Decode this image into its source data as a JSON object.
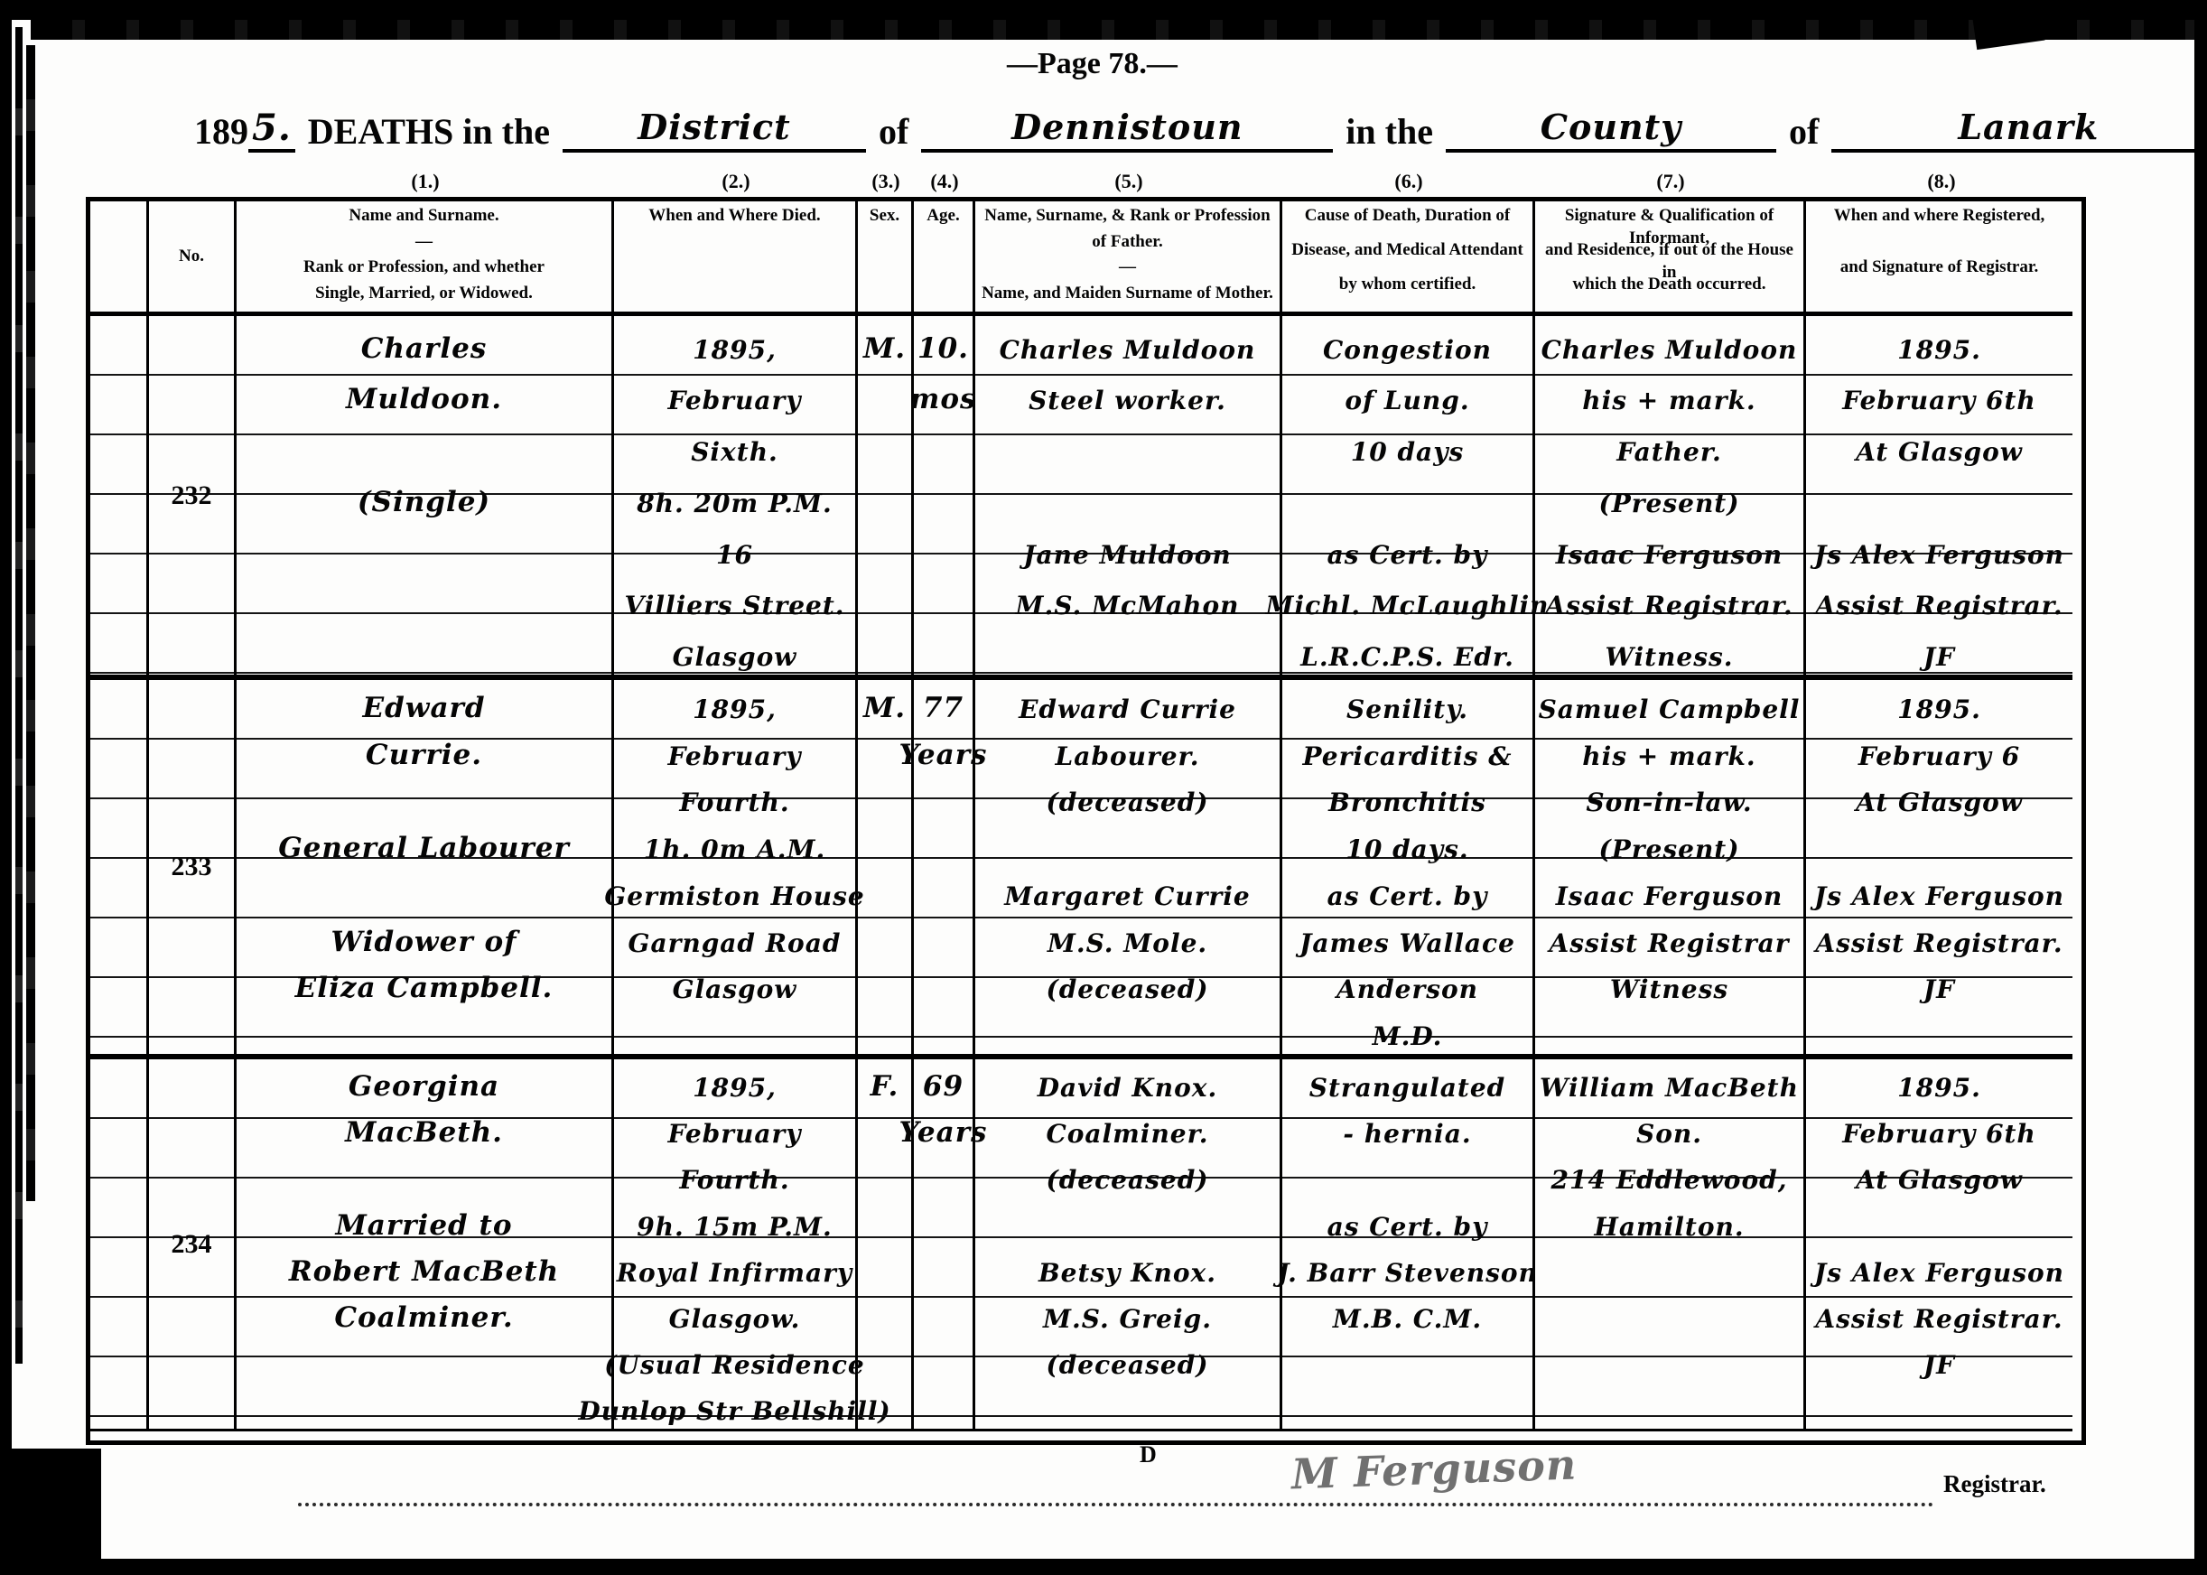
{
  "page_label": "—Page 78.—",
  "title": {
    "year_printed": "189",
    "year_hand": "5.",
    "deaths_in_the": "DEATHS in the",
    "of1": "of",
    "in_the": "in the",
    "of2": "of",
    "district_hand": "District",
    "district_name_hand": "Dennistoun",
    "county_word_hand": "County",
    "county_name_hand": "Lanark"
  },
  "colnums": [
    "(1.)",
    "(2.)",
    "(3.)",
    "(4.)",
    "(5.)",
    "(6.)",
    "(7.)",
    "(8.)"
  ],
  "header": {
    "no": "No.",
    "name": [
      "Name and Surname.",
      "—",
      "Rank or Profession, and whether",
      "Single, Married, or Widowed."
    ],
    "died": [
      "When and Where Died."
    ],
    "sex": [
      "Sex."
    ],
    "age": [
      "Age."
    ],
    "father": [
      "Name, Surname, & Rank or Profession",
      "of Father.",
      "—",
      "Name, and Maiden Surname of Mother."
    ],
    "cause": [
      "Cause of Death, Duration of",
      "Disease, and Medical Attendant",
      "by whom certified."
    ],
    "informant": [
      "Signature & Qualification of Informant,",
      "and Residence, if out of the House in",
      "which the Death occurred."
    ],
    "registered": [
      "When and where Registered,",
      "and Signature of Registrar."
    ]
  },
  "entries": [
    {
      "no": "232",
      "name": [
        "Charles",
        "Muldoon.",
        "",
        "(Single)",
        "",
        "",
        ""
      ],
      "died": [
        "1895,",
        "February",
        "Sixth.",
        "8h. 20m P.M.",
        "16",
        "Villiers Street.",
        "Glasgow"
      ],
      "sex": [
        "M.",
        "",
        "",
        "",
        "",
        "",
        ""
      ],
      "age": [
        "10.",
        "mos",
        "",
        "",
        "",
        "",
        ""
      ],
      "father": [
        "Charles Muldoon",
        "Steel worker.",
        "",
        "",
        "Jane Muldoon",
        "M.S. McMahon",
        ""
      ],
      "cause": [
        "Congestion",
        "of Lung.",
        "10 days",
        "",
        "as Cert. by",
        "Michl. McLaughlin",
        "L.R.C.P.S. Edr."
      ],
      "informant": [
        "Charles Muldoon",
        "his + mark.",
        "Father.",
        "(Present)",
        "Isaac Ferguson",
        "Assist Registrar.",
        "Witness."
      ],
      "registered": [
        "1895.",
        "February 6th",
        "At Glasgow",
        "",
        "Js Alex Ferguson",
        "Assist Registrar.",
        "JF"
      ]
    },
    {
      "no": "233",
      "name": [
        "Edward",
        "Currie.",
        "",
        "General Labourer",
        "",
        "Widower of",
        "Eliza Campbell.",
        ""
      ],
      "died": [
        "1895,",
        "February",
        "Fourth.",
        "1h. 0m A.M.",
        "Germiston House",
        "Garngad Road",
        "Glasgow",
        ""
      ],
      "sex": [
        "M.",
        "",
        "",
        "",
        "",
        "",
        "",
        ""
      ],
      "age": [
        "77",
        "Years",
        "",
        "",
        "",
        "",
        "",
        ""
      ],
      "father": [
        "Edward Currie",
        "Labourer.",
        "(deceased)",
        "",
        "Margaret Currie",
        "M.S. Mole.",
        "(deceased)",
        ""
      ],
      "cause": [
        "Senility.",
        "Pericarditis &",
        "Bronchitis",
        "10 days.",
        "as Cert. by",
        "James Wallace",
        "Anderson",
        "M.D."
      ],
      "informant": [
        "Samuel Campbell",
        "his + mark.",
        "Son-in-law.",
        "(Present)",
        "Isaac Ferguson",
        "Assist Registrar",
        "Witness",
        ""
      ],
      "registered": [
        "1895.",
        "February 6",
        "At Glasgow",
        "",
        "Js Alex Ferguson",
        "Assist Registrar.",
        "JF",
        ""
      ]
    },
    {
      "no": "234",
      "name": [
        "Georgina",
        "MacBeth.",
        "",
        "Married to",
        "Robert MacBeth",
        "Coalminer.",
        "",
        ""
      ],
      "died": [
        "1895,",
        "February",
        "Fourth.",
        "9h. 15m P.M.",
        "Royal Infirmary",
        "Glasgow.",
        "(Usual Residence",
        "Dunlop Str Bellshill)"
      ],
      "sex": [
        "F.",
        "",
        "",
        "",
        "",
        "",
        "",
        ""
      ],
      "age": [
        "69",
        "Years",
        "",
        "",
        "",
        "",
        "",
        ""
      ],
      "father": [
        "David Knox.",
        "Coalminer.",
        "(deceased)",
        "",
        "Betsy Knox.",
        "M.S. Greig.",
        "(deceased)",
        ""
      ],
      "cause": [
        "Strangulated",
        "- hernia.",
        "",
        "as Cert. by",
        "J. Barr Stevenson",
        "M.B. C.M.",
        "",
        ""
      ],
      "informant": [
        "William MacBeth",
        "Son.",
        "214 Eddlewood,",
        "Hamilton.",
        "",
        "",
        "",
        ""
      ],
      "registered": [
        "1895.",
        "February 6th",
        "At Glasgow",
        "",
        "Js Alex Ferguson",
        "Assist Registrar.",
        "JF",
        ""
      ]
    }
  ],
  "footer": {
    "d_mark": "D",
    "signature_hand": "M Ferguson",
    "registrar_printed": "Registrar."
  }
}
